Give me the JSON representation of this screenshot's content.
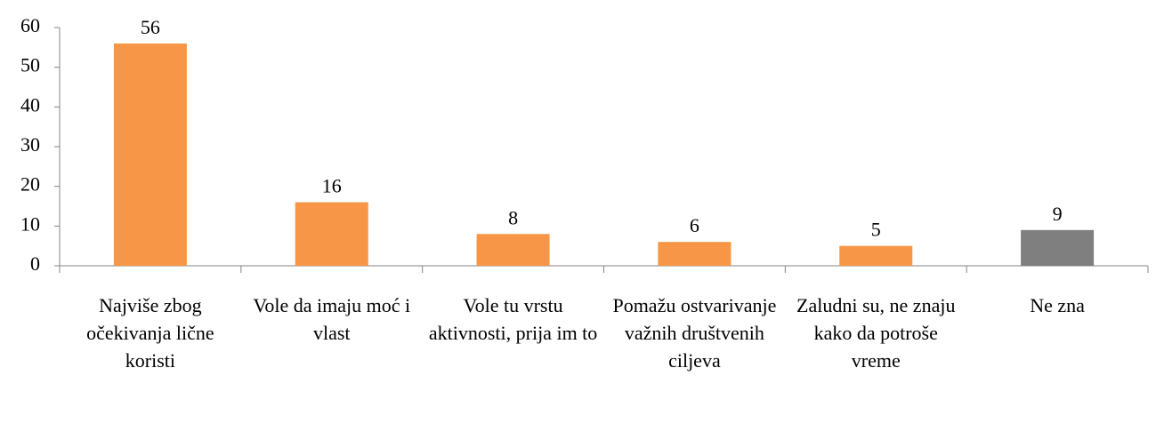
{
  "chart_data": {
    "type": "bar",
    "categories": [
      "Najviše zbog očekivanja lične koristi",
      "Vole da imaju moć i vlast",
      "Vole tu vrstu aktivnosti, prija im to",
      "Pomažu ostvarivanje važnih društvenih ciljeva",
      "Zaludni su, ne znaju kako da potroše vreme",
      "Ne zna"
    ],
    "values": [
      56,
      16,
      8,
      6,
      5,
      9
    ],
    "colors": [
      "#f79646",
      "#f79646",
      "#f79646",
      "#f79646",
      "#f79646",
      "#7f7f7f"
    ],
    "ylim": [
      0,
      60
    ],
    "yticks": [
      0,
      10,
      20,
      30,
      40,
      50,
      60
    ],
    "grid": false
  }
}
